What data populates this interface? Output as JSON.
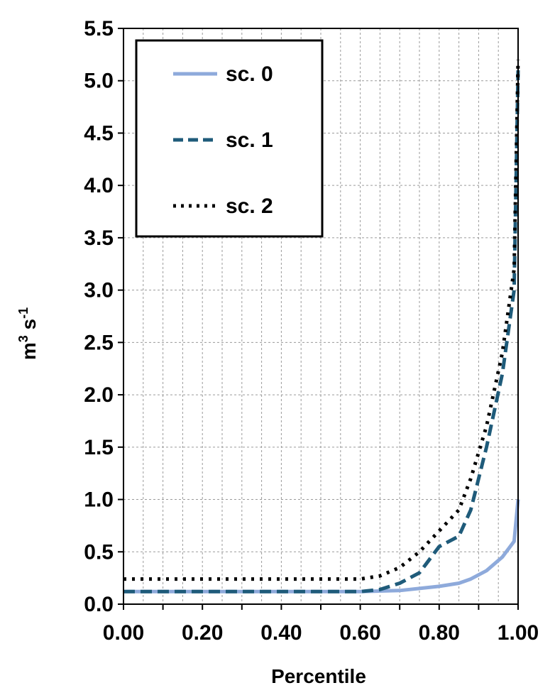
{
  "chart_data": {
    "type": "line",
    "xlabel": "Percentile",
    "ylabel_base": "m",
    "ylabel_sup1": "3",
    "ylabel_mid": " s",
    "ylabel_sup2": "-1",
    "xlim": [
      0,
      1.0
    ],
    "ylim": [
      0,
      5.5
    ],
    "x_ticks": [
      "0.00",
      "0.20",
      "0.40",
      "0.60",
      "0.80",
      "1.00"
    ],
    "y_ticks": [
      "0.0",
      "0.5",
      "1.0",
      "1.5",
      "2.0",
      "2.5",
      "3.0",
      "3.5",
      "4.0",
      "4.5",
      "5.0",
      "5.5"
    ],
    "grid": true,
    "legend_position": "top-left",
    "series": [
      {
        "name": "sc. 0",
        "color": "#8eaadb",
        "style": "solid",
        "points": [
          [
            0,
            0.12
          ],
          [
            0.6,
            0.12
          ],
          [
            0.7,
            0.13
          ],
          [
            0.8,
            0.17
          ],
          [
            0.85,
            0.2
          ],
          [
            0.88,
            0.24
          ],
          [
            0.92,
            0.32
          ],
          [
            0.96,
            0.45
          ],
          [
            0.99,
            0.6
          ],
          [
            1.0,
            1.0
          ]
        ]
      },
      {
        "name": "sc. 1",
        "color": "#1f5b7a",
        "style": "dashed",
        "points": [
          [
            0,
            0.12
          ],
          [
            0.6,
            0.12
          ],
          [
            0.65,
            0.14
          ],
          [
            0.7,
            0.2
          ],
          [
            0.75,
            0.3
          ],
          [
            0.8,
            0.55
          ],
          [
            0.85,
            0.65
          ],
          [
            0.88,
            0.9
          ],
          [
            0.92,
            1.5
          ],
          [
            0.96,
            2.2
          ],
          [
            0.99,
            3.0
          ],
          [
            1.0,
            5.1
          ]
        ]
      },
      {
        "name": "sc. 2",
        "color": "#000000",
        "style": "dotted",
        "points": [
          [
            0,
            0.24
          ],
          [
            0.6,
            0.24
          ],
          [
            0.65,
            0.27
          ],
          [
            0.7,
            0.35
          ],
          [
            0.75,
            0.5
          ],
          [
            0.8,
            0.7
          ],
          [
            0.85,
            0.9
          ],
          [
            0.88,
            1.2
          ],
          [
            0.92,
            1.7
          ],
          [
            0.96,
            2.4
          ],
          [
            0.99,
            3.2
          ],
          [
            1.0,
            5.2
          ]
        ]
      }
    ]
  }
}
